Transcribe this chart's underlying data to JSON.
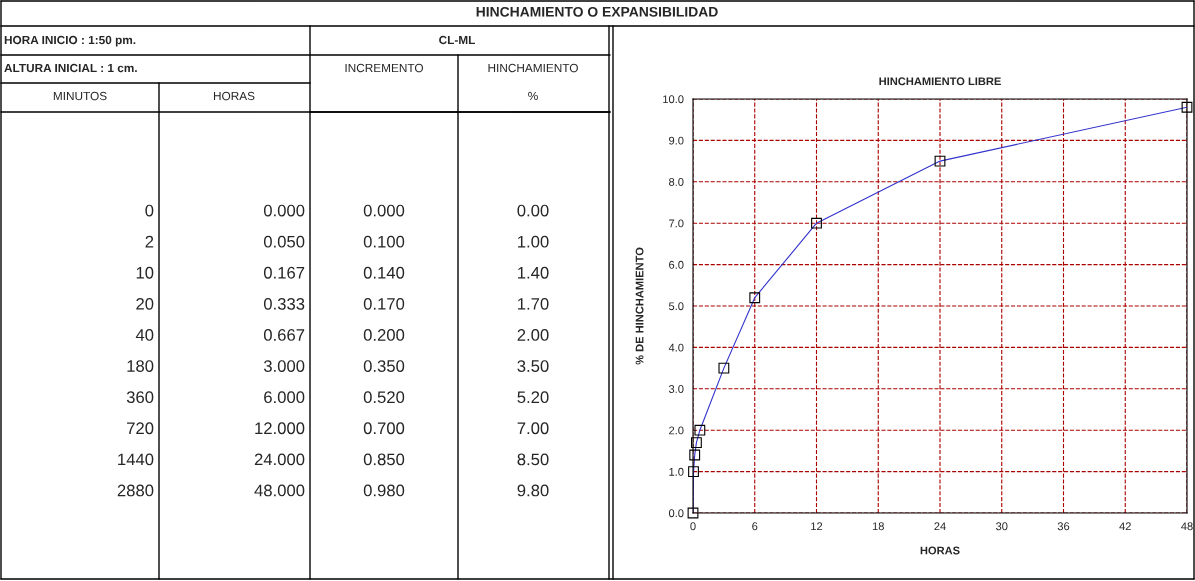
{
  "chart_data": {
    "type": "line",
    "title": "HINCHAMIENTO O EXPANSIBILIDAD",
    "subtitle": "HINCHAMIENTO LIBRE",
    "xlabel": "HORAS",
    "ylabel": "% DE HINCHAMIENTO",
    "x": [
      0,
      0.05,
      0.167,
      0.333,
      0.667,
      3,
      6,
      12,
      24,
      48
    ],
    "series": [
      {
        "color": "#3333cc",
        "values": [
          0,
          1.0,
          1.4,
          1.7,
          2.0,
          3.5,
          5.2,
          7.0,
          8.5,
          9.8
        ]
      }
    ],
    "value_labels": [
      "0.00",
      "1.00",
      "1.40",
      "1.70",
      "2.00",
      "3.50",
      "5.20",
      "7.00",
      "8.50",
      "9.80"
    ],
    "xlim": [
      0,
      48
    ],
    "xticks": [
      0,
      6,
      12,
      18,
      24,
      30,
      36,
      42,
      48
    ],
    "ylim": [
      0,
      10
    ],
    "yticks": [
      {
        "value": 0,
        "label": "0.0"
      },
      {
        "value": 1,
        "label": "1.0"
      },
      {
        "value": 2,
        "label": "2.0"
      },
      {
        "value": 3,
        "label": "3.0"
      },
      {
        "value": 4,
        "label": "4.0"
      },
      {
        "value": 5,
        "label": "5.0"
      },
      {
        "value": 6,
        "label": "6.0"
      },
      {
        "value": 7,
        "label": "7.0"
      },
      {
        "value": 8,
        "label": "8.0"
      },
      {
        "value": 9,
        "label": "9.0"
      },
      {
        "value": 10,
        "label": "10.0"
      }
    ],
    "grid": true,
    "marker": "square",
    "line_style": "solid",
    "annotations": [
      "HORA INICIO : 1:50 pm.",
      "CL-ML",
      "ALTURA INICIAL : 1 cm.",
      "INCREMENTO",
      "HINCHAMIENTO",
      "MINUTOS",
      "HORAS",
      "%",
      "0",
      "2",
      "10",
      "20",
      "40",
      "180",
      "360",
      "720",
      "1440",
      "2880",
      "0.000",
      "0.050",
      "0.167",
      "0.333",
      "0.667",
      "3.000",
      "6.000",
      "12.000",
      "24.000",
      "48.000",
      "0.000",
      "0.100",
      "0.140",
      "0.170",
      "0.200",
      "0.350",
      "0.520",
      "0.700",
      "0.850",
      "0.980"
    ]
  }
}
